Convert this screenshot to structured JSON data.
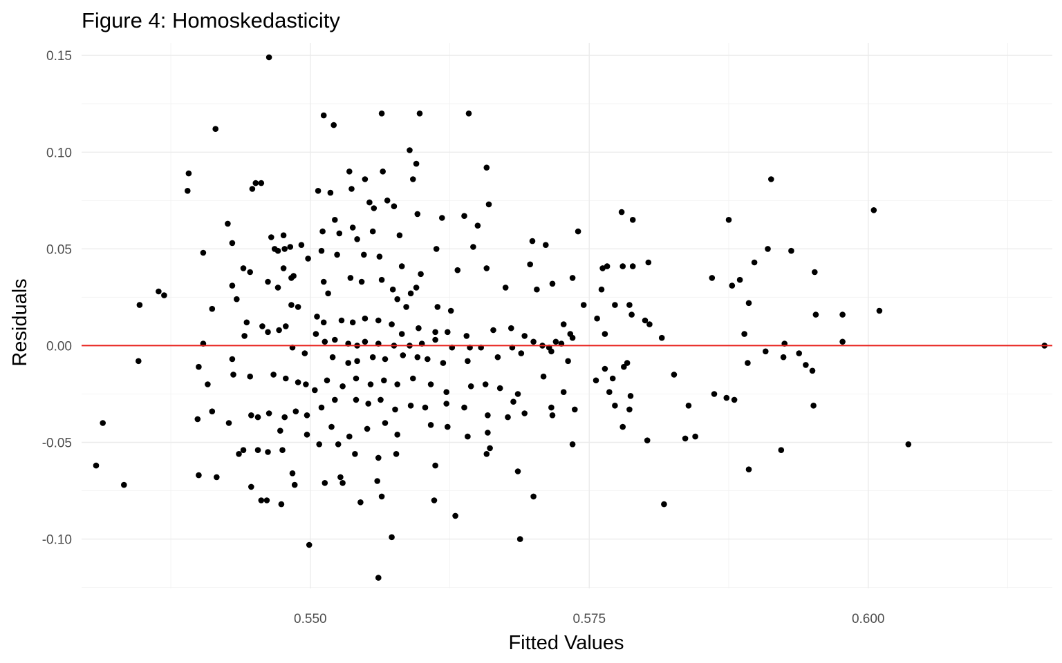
{
  "chart_data": {
    "type": "scatter",
    "title": "Figure 4: Homoskedasticity",
    "xlabel": "Fitted Values",
    "ylabel": "Residuals",
    "xlim": [
      0.5295,
      0.6165
    ],
    "ylim": [
      -0.1255,
      0.1565
    ],
    "x_ticks": [
      0.55,
      0.575,
      0.6
    ],
    "x_tick_labels": [
      "0.550",
      "0.575",
      "0.600"
    ],
    "y_ticks": [
      -0.1,
      -0.05,
      0.0,
      0.05,
      0.1,
      0.15
    ],
    "y_tick_labels": [
      "-0.10",
      "-0.05",
      "0.00",
      "0.05",
      "0.10",
      "0.15"
    ],
    "grid": true,
    "reference_line": {
      "y": 0,
      "color": "#e8211c"
    },
    "point_color": "#000000",
    "points": [
      [
        0.5463,
        0.149
      ],
      [
        0.5512,
        0.119
      ],
      [
        0.5521,
        0.114
      ],
      [
        0.5564,
        0.12
      ],
      [
        0.5598,
        0.12
      ],
      [
        0.5642,
        0.12
      ],
      [
        0.5415,
        0.112
      ],
      [
        0.5589,
        0.101
      ],
      [
        0.5595,
        0.094
      ],
      [
        0.5658,
        0.092
      ],
      [
        0.5391,
        0.089
      ],
      [
        0.539,
        0.08
      ],
      [
        0.5451,
        0.084
      ],
      [
        0.5448,
        0.081
      ],
      [
        0.5456,
        0.084
      ],
      [
        0.5535,
        0.09
      ],
      [
        0.5565,
        0.09
      ],
      [
        0.5507,
        0.08
      ],
      [
        0.5518,
        0.079
      ],
      [
        0.5549,
        0.086
      ],
      [
        0.5592,
        0.086
      ],
      [
        0.5913,
        0.086
      ],
      [
        0.6005,
        0.07
      ],
      [
        0.5779,
        0.069
      ],
      [
        0.5537,
        0.081
      ],
      [
        0.5553,
        0.074
      ],
      [
        0.5569,
        0.075
      ],
      [
        0.5557,
        0.071
      ],
      [
        0.566,
        0.073
      ],
      [
        0.5575,
        0.072
      ],
      [
        0.5638,
        0.067
      ],
      [
        0.565,
        0.062
      ],
      [
        0.5618,
        0.066
      ],
      [
        0.5596,
        0.068
      ],
      [
        0.5522,
        0.065
      ],
      [
        0.5789,
        0.065
      ],
      [
        0.5875,
        0.065
      ],
      [
        0.5426,
        0.063
      ],
      [
        0.5476,
        0.057
      ],
      [
        0.5465,
        0.056
      ],
      [
        0.5511,
        0.059
      ],
      [
        0.5526,
        0.058
      ],
      [
        0.5538,
        0.061
      ],
      [
        0.5542,
        0.055
      ],
      [
        0.5556,
        0.059
      ],
      [
        0.558,
        0.057
      ],
      [
        0.5613,
        0.05
      ],
      [
        0.5646,
        0.051
      ],
      [
        0.574,
        0.059
      ],
      [
        0.5699,
        0.054
      ],
      [
        0.5711,
        0.052
      ],
      [
        0.591,
        0.05
      ],
      [
        0.5931,
        0.049
      ],
      [
        0.5952,
        0.038
      ],
      [
        0.5898,
        0.043
      ],
      [
        0.5803,
        0.043
      ],
      [
        0.5404,
        0.048
      ],
      [
        0.543,
        0.053
      ],
      [
        0.5468,
        0.05
      ],
      [
        0.5471,
        0.049
      ],
      [
        0.5477,
        0.05
      ],
      [
        0.5482,
        0.051
      ],
      [
        0.5492,
        0.052
      ],
      [
        0.551,
        0.049
      ],
      [
        0.5498,
        0.045
      ],
      [
        0.5524,
        0.047
      ],
      [
        0.5548,
        0.047
      ],
      [
        0.5562,
        0.046
      ],
      [
        0.5582,
        0.041
      ],
      [
        0.5599,
        0.037
      ],
      [
        0.5632,
        0.039
      ],
      [
        0.5658,
        0.04
      ],
      [
        0.5697,
        0.042
      ],
      [
        0.5762,
        0.04
      ],
      [
        0.5766,
        0.041
      ],
      [
        0.578,
        0.041
      ],
      [
        0.5789,
        0.041
      ],
      [
        0.5735,
        0.035
      ],
      [
        0.586,
        0.035
      ],
      [
        0.5885,
        0.034
      ],
      [
        0.5878,
        0.031
      ],
      [
        0.5893,
        0.022
      ],
      [
        0.5446,
        0.038
      ],
      [
        0.544,
        0.04
      ],
      [
        0.5462,
        0.033
      ],
      [
        0.5471,
        0.03
      ],
      [
        0.5485,
        0.036
      ],
      [
        0.5476,
        0.04
      ],
      [
        0.5483,
        0.035
      ],
      [
        0.5512,
        0.033
      ],
      [
        0.5516,
        0.027
      ],
      [
        0.5536,
        0.035
      ],
      [
        0.5546,
        0.033
      ],
      [
        0.5564,
        0.034
      ],
      [
        0.5574,
        0.029
      ],
      [
        0.5578,
        0.024
      ],
      [
        0.559,
        0.027
      ],
      [
        0.5586,
        0.02
      ],
      [
        0.5614,
        0.02
      ],
      [
        0.5626,
        0.018
      ],
      [
        0.5675,
        0.03
      ],
      [
        0.5703,
        0.029
      ],
      [
        0.5717,
        0.032
      ],
      [
        0.5761,
        0.029
      ],
      [
        0.5773,
        0.021
      ],
      [
        0.5786,
        0.021
      ],
      [
        0.5745,
        0.021
      ],
      [
        0.5804,
        0.011
      ],
      [
        0.58,
        0.013
      ],
      [
        0.5788,
        0.016
      ],
      [
        0.5595,
        0.03
      ],
      [
        0.5364,
        0.028
      ],
      [
        0.5347,
        0.021
      ],
      [
        0.5369,
        0.026
      ],
      [
        0.5412,
        0.019
      ],
      [
        0.543,
        0.031
      ],
      [
        0.5434,
        0.024
      ],
      [
        0.5443,
        0.012
      ],
      [
        0.5441,
        0.005
      ],
      [
        0.5457,
        0.01
      ],
      [
        0.5462,
        0.007
      ],
      [
        0.5472,
        0.008
      ],
      [
        0.5478,
        0.01
      ],
      [
        0.5483,
        0.021
      ],
      [
        0.5489,
        0.02
      ],
      [
        0.5506,
        0.015
      ],
      [
        0.5512,
        0.012
      ],
      [
        0.5528,
        0.013
      ],
      [
        0.5538,
        0.012
      ],
      [
        0.5549,
        0.014
      ],
      [
        0.5561,
        0.013
      ],
      [
        0.5573,
        0.011
      ],
      [
        0.5582,
        0.006
      ],
      [
        0.5597,
        0.009
      ],
      [
        0.5612,
        0.007
      ],
      [
        0.5623,
        0.007
      ],
      [
        0.564,
        0.005
      ],
      [
        0.5664,
        0.008
      ],
      [
        0.568,
        0.009
      ],
      [
        0.5692,
        0.005
      ],
      [
        0.5727,
        0.011
      ],
      [
        0.5757,
        0.014
      ],
      [
        0.5815,
        0.004
      ],
      [
        0.5889,
        0.006
      ],
      [
        0.5953,
        0.016
      ],
      [
        0.5977,
        0.016
      ],
      [
        0.601,
        0.018
      ],
      [
        0.5764,
        0.006
      ],
      [
        0.5733,
        0.006
      ],
      [
        0.5735,
        0.004
      ],
      [
        0.5708,
        0.0
      ],
      [
        0.572,
        0.002
      ],
      [
        0.57,
        0.002
      ],
      [
        0.5404,
        0.001
      ],
      [
        0.5505,
        0.006
      ],
      [
        0.5513,
        0.002
      ],
      [
        0.5522,
        0.003
      ],
      [
        0.5534,
        0.001
      ],
      [
        0.5542,
        0.0
      ],
      [
        0.5549,
        0.002
      ],
      [
        0.5561,
        0.001
      ],
      [
        0.5575,
        0.0
      ],
      [
        0.5589,
        0.0
      ],
      [
        0.56,
        0.001
      ],
      [
        0.5612,
        0.003
      ],
      [
        0.5627,
        -0.001
      ],
      [
        0.5643,
        -0.001
      ],
      [
        0.5653,
        -0.001
      ],
      [
        0.5681,
        -0.001
      ],
      [
        0.5714,
        -0.001
      ],
      [
        0.5725,
        0.001
      ],
      [
        0.5908,
        -0.003
      ],
      [
        0.5925,
        0.001
      ],
      [
        0.5938,
        -0.004
      ],
      [
        0.5977,
        0.002
      ],
      [
        0.6158,
        0.0
      ],
      [
        0.5346,
        -0.008
      ],
      [
        0.543,
        -0.007
      ],
      [
        0.5484,
        -0.001
      ],
      [
        0.5495,
        -0.004
      ],
      [
        0.552,
        -0.006
      ],
      [
        0.5534,
        -0.009
      ],
      [
        0.5542,
        -0.008
      ],
      [
        0.5556,
        -0.006
      ],
      [
        0.5567,
        -0.007
      ],
      [
        0.5583,
        -0.005
      ],
      [
        0.5596,
        -0.006
      ],
      [
        0.5605,
        -0.007
      ],
      [
        0.5619,
        -0.009
      ],
      [
        0.5641,
        -0.008
      ],
      [
        0.5668,
        -0.006
      ],
      [
        0.5689,
        -0.004
      ],
      [
        0.5716,
        -0.003
      ],
      [
        0.5731,
        -0.008
      ],
      [
        0.5781,
        -0.011
      ],
      [
        0.5764,
        -0.012
      ],
      [
        0.5784,
        -0.009
      ],
      [
        0.5892,
        -0.009
      ],
      [
        0.5924,
        -0.006
      ],
      [
        0.5944,
        -0.01
      ],
      [
        0.54,
        -0.011
      ],
      [
        0.5408,
        -0.02
      ],
      [
        0.5431,
        -0.015
      ],
      [
        0.5446,
        -0.016
      ],
      [
        0.5467,
        -0.015
      ],
      [
        0.5478,
        -0.017
      ],
      [
        0.5489,
        -0.019
      ],
      [
        0.5496,
        -0.02
      ],
      [
        0.5504,
        -0.023
      ],
      [
        0.5515,
        -0.018
      ],
      [
        0.5529,
        -0.021
      ],
      [
        0.5541,
        -0.017
      ],
      [
        0.5554,
        -0.02
      ],
      [
        0.5566,
        -0.018
      ],
      [
        0.5578,
        -0.02
      ],
      [
        0.5592,
        -0.017
      ],
      [
        0.5608,
        -0.02
      ],
      [
        0.5622,
        -0.024
      ],
      [
        0.5644,
        -0.021
      ],
      [
        0.5657,
        -0.02
      ],
      [
        0.567,
        -0.022
      ],
      [
        0.5686,
        -0.025
      ],
      [
        0.5709,
        -0.016
      ],
      [
        0.5727,
        -0.024
      ],
      [
        0.5756,
        -0.018
      ],
      [
        0.5768,
        -0.024
      ],
      [
        0.5771,
        -0.017
      ],
      [
        0.5787,
        -0.026
      ],
      [
        0.5826,
        -0.015
      ],
      [
        0.5862,
        -0.025
      ],
      [
        0.5873,
        -0.027
      ],
      [
        0.595,
        -0.013
      ],
      [
        0.5399,
        -0.038
      ],
      [
        0.5412,
        -0.034
      ],
      [
        0.5453,
        -0.037
      ],
      [
        0.5447,
        -0.036
      ],
      [
        0.5463,
        -0.035
      ],
      [
        0.5477,
        -0.037
      ],
      [
        0.5487,
        -0.034
      ],
      [
        0.5497,
        -0.036
      ],
      [
        0.551,
        -0.032
      ],
      [
        0.5522,
        -0.028
      ],
      [
        0.5541,
        -0.028
      ],
      [
        0.5552,
        -0.03
      ],
      [
        0.5563,
        -0.028
      ],
      [
        0.5576,
        -0.033
      ],
      [
        0.559,
        -0.031
      ],
      [
        0.5603,
        -0.032
      ],
      [
        0.5622,
        -0.03
      ],
      [
        0.5638,
        -0.032
      ],
      [
        0.5659,
        -0.036
      ],
      [
        0.5677,
        -0.037
      ],
      [
        0.5682,
        -0.029
      ],
      [
        0.5692,
        -0.035
      ],
      [
        0.5716,
        -0.032
      ],
      [
        0.5737,
        -0.033
      ],
      [
        0.5773,
        -0.031
      ],
      [
        0.5786,
        -0.033
      ],
      [
        0.5839,
        -0.031
      ],
      [
        0.588,
        -0.028
      ],
      [
        0.5951,
        -0.031
      ],
      [
        0.5314,
        -0.04
      ],
      [
        0.5427,
        -0.04
      ],
      [
        0.5473,
        -0.044
      ],
      [
        0.5497,
        -0.046
      ],
      [
        0.5519,
        -0.042
      ],
      [
        0.5535,
        -0.047
      ],
      [
        0.5551,
        -0.043
      ],
      [
        0.5567,
        -0.04
      ],
      [
        0.5578,
        -0.046
      ],
      [
        0.5608,
        -0.041
      ],
      [
        0.5623,
        -0.042
      ],
      [
        0.5641,
        -0.047
      ],
      [
        0.5659,
        -0.045
      ],
      [
        0.5717,
        -0.036
      ],
      [
        0.578,
        -0.042
      ],
      [
        0.5802,
        -0.049
      ],
      [
        0.5845,
        -0.047
      ],
      [
        0.5836,
        -0.048
      ],
      [
        0.5735,
        -0.051
      ],
      [
        0.5922,
        -0.054
      ],
      [
        0.6036,
        -0.051
      ],
      [
        0.5308,
        -0.062
      ],
      [
        0.5333,
        -0.072
      ],
      [
        0.54,
        -0.067
      ],
      [
        0.5416,
        -0.068
      ],
      [
        0.5436,
        -0.056
      ],
      [
        0.544,
        -0.054
      ],
      [
        0.5453,
        -0.054
      ],
      [
        0.5462,
        -0.055
      ],
      [
        0.5475,
        -0.054
      ],
      [
        0.5484,
        -0.066
      ],
      [
        0.5508,
        -0.051
      ],
      [
        0.5525,
        -0.051
      ],
      [
        0.554,
        -0.056
      ],
      [
        0.5561,
        -0.058
      ],
      [
        0.5577,
        -0.056
      ],
      [
        0.5612,
        -0.062
      ],
      [
        0.5658,
        -0.056
      ],
      [
        0.5661,
        -0.053
      ],
      [
        0.5686,
        -0.065
      ],
      [
        0.5893,
        -0.064
      ],
      [
        0.5447,
        -0.073
      ],
      [
        0.5456,
        -0.08
      ],
      [
        0.5461,
        -0.08
      ],
      [
        0.5474,
        -0.082
      ],
      [
        0.5486,
        -0.072
      ],
      [
        0.5513,
        -0.071
      ],
      [
        0.5527,
        -0.068
      ],
      [
        0.5529,
        -0.071
      ],
      [
        0.5545,
        -0.081
      ],
      [
        0.556,
        -0.07
      ],
      [
        0.5564,
        -0.078
      ],
      [
        0.5611,
        -0.08
      ],
      [
        0.563,
        -0.088
      ],
      [
        0.57,
        -0.078
      ],
      [
        0.5817,
        -0.082
      ],
      [
        0.5573,
        -0.099
      ],
      [
        0.5499,
        -0.103
      ],
      [
        0.5688,
        -0.1
      ],
      [
        0.5561,
        -0.12
      ]
    ]
  }
}
